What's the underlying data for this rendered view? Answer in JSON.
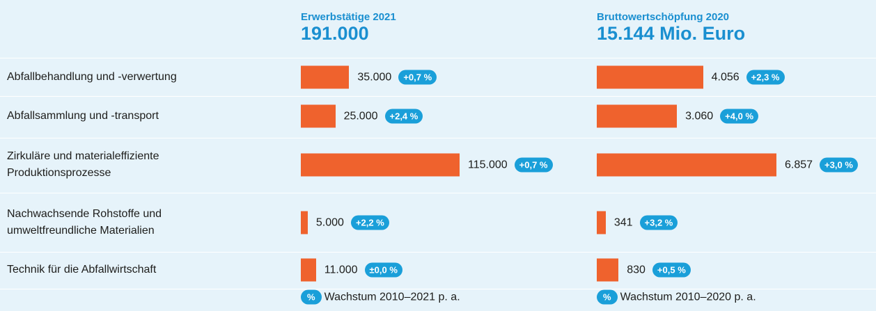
{
  "chart_data": {
    "type": "bar",
    "categories": [
      "Abfallbehandlung und -verwertung",
      "Abfallsammlung und -transport",
      "Zirkuläre und materialeffiziente Produktionsprozesse",
      "Nachwachsende Rohstoffe und umweltfreundliche Materialien",
      "Technik für die Abfallwirtschaft"
    ],
    "legend_badge": "%",
    "series": [
      {
        "name": "Erwerbstätige 2021",
        "total": "191.000",
        "color": "#ef622d",
        "values": [
          35000,
          25000,
          115000,
          5000,
          11000
        ],
        "value_labels": [
          "35.000",
          "25.000",
          "115.000",
          "5.000",
          "11.000"
        ],
        "growth_labels": [
          "+0,7 %",
          "+2,4 %",
          "+0,7 %",
          "+2,2 %",
          "±0,0 %"
        ],
        "legend_label": "Wachstum 2010–2021 p. a."
      },
      {
        "name": "Bruttowertschöpfung 2020",
        "total": "15.144 Mio. Euro",
        "color": "#ef622d",
        "values": [
          4056,
          3060,
          6857,
          341,
          830
        ],
        "value_labels": [
          "4.056",
          "3.060",
          "6.857",
          "341",
          "830"
        ],
        "growth_labels": [
          "+2,3 %",
          "+4,0 %",
          "+3,0 %",
          "+3,2 %",
          "+0,5 %"
        ],
        "legend_label": "Wachstum 2010–2020 p. a."
      }
    ]
  }
}
